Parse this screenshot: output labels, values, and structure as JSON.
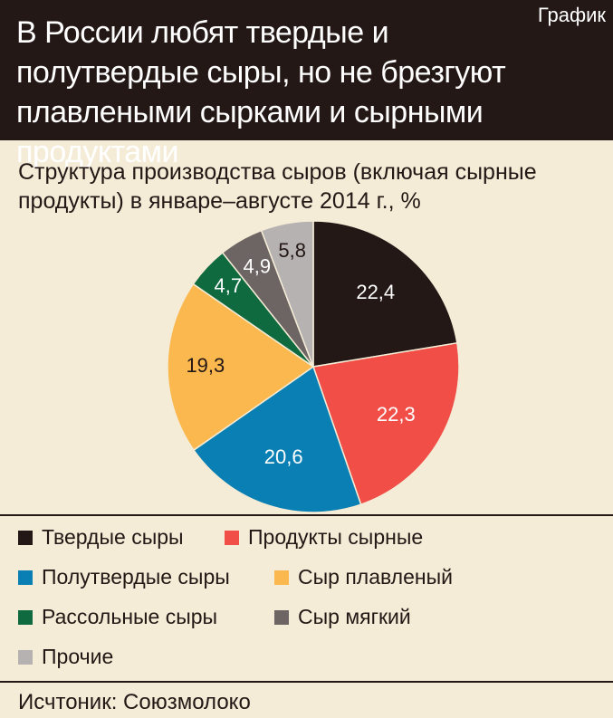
{
  "header": {
    "title": "В России любят твердые и полутвердые сыры, но не брезгуют плавлеными сырками и сырными продуктами",
    "tag": "График"
  },
  "subtitle": "Структура производства сыров (включая сырные продукты) в январе–августе 2014 г., %",
  "source": "Исчтоник: Союзмолоко",
  "chart_data": {
    "type": "pie",
    "title": "Структура производства сыров (включая сырные продукты) в январе–августе 2014 г., %",
    "legend_position": "bottom",
    "slices": [
      {
        "name": "Твердые сыры",
        "value": 22.4,
        "label": "22,4",
        "color": "#231815",
        "label_color": "#ffffff"
      },
      {
        "name": "Продукты сырные",
        "value": 22.3,
        "label": "22,3",
        "color": "#f04e46",
        "label_color": "#ffffff"
      },
      {
        "name": "Полутвердые сыры",
        "value": 20.6,
        "label": "20,6",
        "color": "#0a7fb3",
        "label_color": "#ffffff"
      },
      {
        "name": "Сыр плавленый",
        "value": 19.3,
        "label": "19,3",
        "color": "#fbb84f",
        "label_color": "#231815"
      },
      {
        "name": "Рассольные сыры",
        "value": 4.7,
        "label": "4,7",
        "color": "#0f6b3f",
        "label_color": "#ffffff"
      },
      {
        "name": "Сыр мягкий",
        "value": 4.9,
        "label": "4,9",
        "color": "#6d6563",
        "label_color": "#ffffff"
      },
      {
        "name": "Прочие",
        "value": 5.8,
        "label": "5,8",
        "color": "#b6b2b1",
        "label_color": "#231815"
      }
    ]
  }
}
